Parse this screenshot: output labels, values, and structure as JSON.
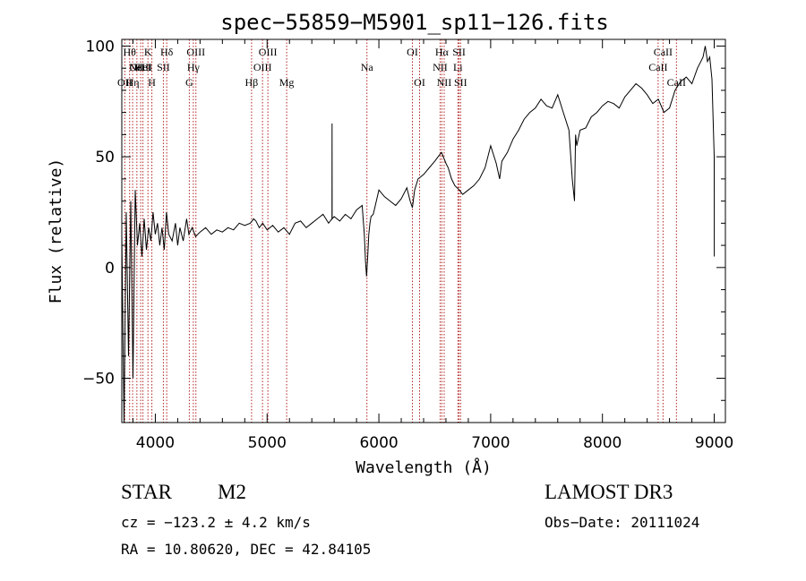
{
  "chart_data": {
    "type": "line",
    "title": "spec−55859−M5901_sp11−126.fits",
    "xlabel": "Wavelength (Å)",
    "ylabel": "Flux (relative)",
    "xlim": [
      3700,
      9100
    ],
    "ylim": [
      -70,
      103
    ],
    "xticks": [
      4000,
      5000,
      6000,
      7000,
      8000,
      9000
    ],
    "yticks": [
      -50,
      0,
      50,
      100
    ],
    "ytick_labels": [
      "−50",
      "0",
      "50",
      "100"
    ],
    "line_color": "#000000",
    "marker_color": "#b22222",
    "series": [
      {
        "name": "flux",
        "x": [
          3700,
          3720,
          3740,
          3760,
          3780,
          3800,
          3820,
          3840,
          3860,
          3880,
          3900,
          3920,
          3940,
          3960,
          3980,
          4000,
          4020,
          4040,
          4060,
          4080,
          4100,
          4120,
          4150,
          4180,
          4200,
          4220,
          4250,
          4280,
          4300,
          4330,
          4360,
          4400,
          4450,
          4500,
          4550,
          4600,
          4650,
          4700,
          4750,
          4800,
          4850,
          4880,
          4900,
          4930,
          4960,
          5000,
          5050,
          5100,
          5150,
          5200,
          5250,
          5300,
          5350,
          5400,
          5450,
          5500,
          5550,
          5580,
          5581,
          5582,
          5600,
          5650,
          5700,
          5750,
          5800,
          5850,
          5870,
          5880,
          5890,
          5900,
          5910,
          5920,
          5930,
          5950,
          6000,
          6050,
          6100,
          6150,
          6200,
          6250,
          6280,
          6300,
          6320,
          6350,
          6400,
          6450,
          6500,
          6530,
          6560,
          6600,
          6620,
          6650,
          6680,
          6700,
          6720,
          6750,
          6800,
          6850,
          6900,
          6950,
          7000,
          7050,
          7080,
          7100,
          7150,
          7200,
          7250,
          7300,
          7350,
          7400,
          7450,
          7500,
          7550,
          7600,
          7650,
          7700,
          7730,
          7750,
          7760,
          7770,
          7800,
          7850,
          7900,
          7950,
          8000,
          8050,
          8100,
          8150,
          8200,
          8250,
          8300,
          8350,
          8400,
          8450,
          8500,
          8550,
          8600,
          8650,
          8700,
          8750,
          8800,
          8850,
          8900,
          8920,
          8940,
          8960,
          8980,
          9000,
          9001
        ],
        "y": [
          15,
          -70,
          25,
          -40,
          30,
          -50,
          35,
          10,
          20,
          5,
          22,
          8,
          18,
          12,
          25,
          15,
          20,
          10,
          18,
          8,
          25,
          15,
          12,
          20,
          10,
          18,
          12,
          22,
          15,
          18,
          14,
          16,
          18,
          15,
          17,
          16,
          18,
          17,
          20,
          19,
          20,
          22,
          21,
          18,
          20,
          17,
          19,
          16,
          18,
          15,
          20,
          21,
          18,
          20,
          22,
          24,
          20,
          22,
          65,
          22,
          23,
          21,
          24,
          22,
          26,
          28,
          15,
          3,
          -4,
          5,
          15,
          20,
          23,
          24,
          35,
          32,
          30,
          28,
          31,
          36,
          30,
          27,
          35,
          40,
          42,
          45,
          48,
          50,
          52,
          47,
          45,
          40,
          37,
          36,
          35,
          33,
          35,
          37,
          40,
          45,
          55,
          47,
          40,
          48,
          52,
          58,
          62,
          67,
          70,
          72,
          76,
          73,
          72,
          78,
          70,
          62,
          40,
          30,
          60,
          55,
          62,
          63,
          68,
          70,
          73,
          75,
          74,
          72,
          77,
          80,
          83,
          81,
          78,
          74,
          76,
          70,
          72,
          80,
          84,
          86,
          83,
          90,
          95,
          100,
          93,
          95,
          85,
          50,
          5
        ]
      }
    ],
    "lines": [
      {
        "x": 3727,
        "label": "OII",
        "row": 3
      },
      {
        "x": 3770,
        "label": "Hθ",
        "row": 1
      },
      {
        "x": 3797,
        "label": "Hη",
        "row": 3
      },
      {
        "x": 3835,
        "label": "OII",
        "row": 2
      },
      {
        "x": 3869,
        "label": "NeIII",
        "row": 2
      },
      {
        "x": 3889,
        "label": "HeI",
        "row": 2
      },
      {
        "x": 3934,
        "label": "K",
        "row": 1
      },
      {
        "x": 3969,
        "label": "H",
        "row": 3
      },
      {
        "x": 4072,
        "label": "SII",
        "row": 2
      },
      {
        "x": 4102,
        "label": "Hδ",
        "row": 1
      },
      {
        "x": 4304,
        "label": "G",
        "row": 3
      },
      {
        "x": 4340,
        "label": "Hγ",
        "row": 2
      },
      {
        "x": 4363,
        "label": "OIII",
        "row": 1
      },
      {
        "x": 4861,
        "label": "Hβ",
        "row": 3
      },
      {
        "x": 4959,
        "label": "OIII",
        "row": 2
      },
      {
        "x": 5007,
        "label": "OIII",
        "row": 1
      },
      {
        "x": 5175,
        "label": "Mg",
        "row": 3
      },
      {
        "x": 5893,
        "label": "Na",
        "row": 2
      },
      {
        "x": 6300,
        "label": "OI",
        "row": 1
      },
      {
        "x": 6364,
        "label": "OI",
        "row": 3
      },
      {
        "x": 6548,
        "label": "NII",
        "row": 2
      },
      {
        "x": 6563,
        "label": "Hα",
        "row": 1
      },
      {
        "x": 6584,
        "label": "NII",
        "row": 3
      },
      {
        "x": 6707,
        "label": "Li",
        "row": 2
      },
      {
        "x": 6717,
        "label": "SII",
        "row": 1
      },
      {
        "x": 6731,
        "label": "SII",
        "row": 3
      },
      {
        "x": 8498,
        "label": "CaII",
        "row": 2
      },
      {
        "x": 8542,
        "label": "CaII",
        "row": 1
      },
      {
        "x": 8662,
        "label": "CaII",
        "row": 3
      }
    ]
  },
  "info": {
    "object_class": "STAR",
    "subclass": "M2",
    "survey": "LAMOST DR3",
    "cz": "cz = −123.2 ± 4.2 km/s",
    "obs_date": "Obs−Date: 20111024",
    "coords": "RA =  10.80620, DEC =  42.84105"
  }
}
